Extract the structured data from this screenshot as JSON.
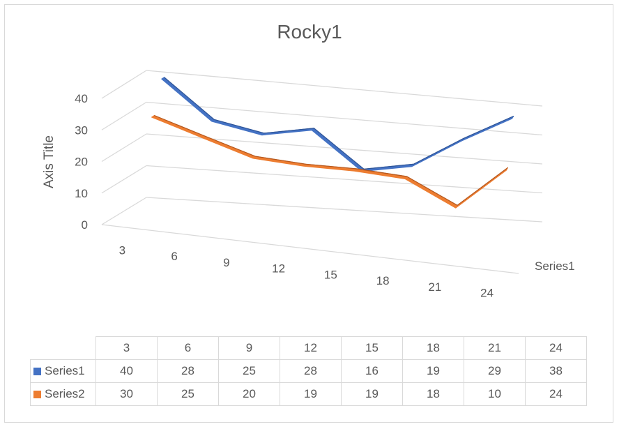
{
  "chart_data": {
    "type": "line",
    "subtype": "3d-line",
    "title": "Rocky1",
    "ylabel": "Axis Title",
    "depth_label": "Series1",
    "categories": [
      "3",
      "6",
      "9",
      "12",
      "15",
      "18",
      "21",
      "24"
    ],
    "yticks": [
      "0",
      "10",
      "20",
      "30",
      "40"
    ],
    "ylim": [
      0,
      40
    ],
    "grid": true,
    "legend": "data-table",
    "series": [
      {
        "name": "Series1",
        "color": "#4472C4",
        "values": [
          40,
          28,
          25,
          28,
          16,
          19,
          29,
          38
        ]
      },
      {
        "name": "Series2",
        "color": "#ED7D31",
        "values": [
          30,
          25,
          20,
          19,
          19,
          18,
          10,
          24
        ]
      }
    ]
  }
}
